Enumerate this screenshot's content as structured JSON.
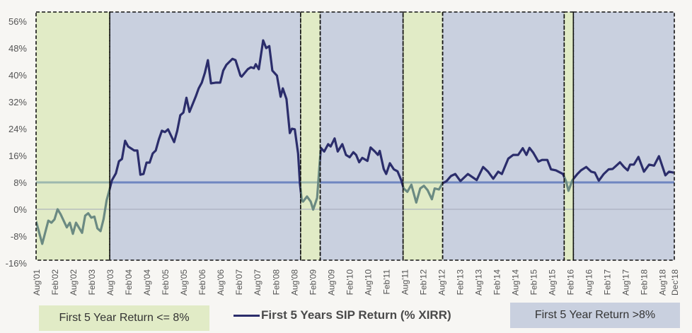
{
  "chart_data": {
    "type": "line",
    "title": "",
    "xlabel": "",
    "ylabel": "",
    "ylim": [
      -16,
      56
    ],
    "yticks": [
      56,
      48,
      40,
      32,
      24,
      16,
      8,
      0,
      -8,
      -16
    ],
    "ytick_labels": [
      "56%",
      "48%",
      "40%",
      "32%",
      "24%",
      "16%",
      "8%",
      "0%",
      "-8%",
      "-16%"
    ],
    "x_unit_months_start": "Aug'01",
    "xlim_months": [
      0,
      208
    ],
    "xtick_labels": [
      "Aug'01",
      "Feb'02",
      "Aug'02",
      "Feb'03",
      "Aug'03",
      "Feb'04",
      "Aug'04",
      "Feb'05",
      "Aug'05",
      "Feb'06",
      "Aug'06",
      "Feb'07",
      "Aug'07",
      "Feb'08",
      "Aug'08",
      "Feb'09",
      "Aug'09",
      "Feb'10",
      "Aug'10",
      "Feb'11",
      "Aug'11",
      "Feb'12",
      "Aug'12",
      "Feb'13",
      "Aug'13",
      "Feb'14",
      "Aug'14",
      "Feb'15",
      "Aug'15",
      "Feb'16",
      "Aug'16",
      "Feb'17",
      "Aug'17",
      "Feb'18",
      "Aug'18",
      "Dec'18"
    ],
    "xtick_months": [
      0,
      6,
      12,
      18,
      24,
      30,
      36,
      42,
      48,
      54,
      60,
      66,
      72,
      78,
      84,
      90,
      96,
      102,
      108,
      114,
      120,
      126,
      132,
      138,
      144,
      150,
      156,
      162,
      168,
      174,
      180,
      186,
      192,
      198,
      204,
      208
    ],
    "threshold": 8,
    "series": [
      {
        "name": "First 5 Years SIP Return (% XIRR)",
        "color_above": "#2b2d6b",
        "color_below": "#6b8a82",
        "points": [
          [
            0,
            -3.6
          ],
          [
            2,
            -10.3
          ],
          [
            4,
            -3.4
          ],
          [
            5,
            -4
          ],
          [
            6,
            -3
          ],
          [
            7,
            0
          ],
          [
            8,
            -1.5
          ],
          [
            10,
            -5.4
          ],
          [
            11,
            -4
          ],
          [
            12,
            -7.3
          ],
          [
            13,
            -4
          ],
          [
            15,
            -7
          ],
          [
            16,
            -1.9
          ],
          [
            17,
            -1.2
          ],
          [
            18,
            -2.5
          ],
          [
            19,
            -2.2
          ],
          [
            20,
            -5.7
          ],
          [
            21,
            -6.5
          ],
          [
            22,
            -2.9
          ],
          [
            23,
            2.7
          ],
          [
            24,
            6.1
          ],
          [
            24.7,
            8.6
          ],
          [
            26,
            10.7
          ],
          [
            27,
            14.3
          ],
          [
            28,
            15
          ],
          [
            29,
            20.4
          ],
          [
            30,
            18.7
          ],
          [
            31,
            18.1
          ],
          [
            32,
            17.5
          ],
          [
            33,
            17.5
          ],
          [
            34,
            10.3
          ],
          [
            35,
            10.5
          ],
          [
            36,
            13.9
          ],
          [
            37,
            13.9
          ],
          [
            38,
            16.6
          ],
          [
            39,
            17.5
          ],
          [
            40,
            20.8
          ],
          [
            41,
            23.4
          ],
          [
            42,
            23
          ],
          [
            43,
            23.8
          ],
          [
            45,
            20
          ],
          [
            46,
            23.4
          ],
          [
            47,
            28
          ],
          [
            48,
            28.8
          ],
          [
            49,
            33.2
          ],
          [
            50,
            29
          ],
          [
            52,
            33.5
          ],
          [
            53,
            36
          ],
          [
            54,
            37.7
          ],
          [
            55,
            40.6
          ],
          [
            56,
            44.4
          ],
          [
            57,
            37.5
          ],
          [
            58.5,
            37.7
          ],
          [
            60,
            37.7
          ],
          [
            61,
            41.3
          ],
          [
            62,
            43
          ],
          [
            64,
            44.8
          ],
          [
            65,
            44.4
          ],
          [
            66.6,
            39.8
          ],
          [
            67,
            39.5
          ],
          [
            69,
            41.7
          ],
          [
            70,
            42.3
          ],
          [
            71,
            42
          ],
          [
            71.6,
            43.2
          ],
          [
            72.6,
            41.7
          ],
          [
            74,
            50.3
          ],
          [
            75,
            48
          ],
          [
            76,
            48.6
          ],
          [
            77,
            41.3
          ],
          [
            78.5,
            39.8
          ],
          [
            79.7,
            33.5
          ],
          [
            80.4,
            36
          ],
          [
            81.6,
            32.8
          ],
          [
            82.7,
            22.7
          ],
          [
            83.4,
            24
          ],
          [
            84.3,
            23.8
          ],
          [
            85.4,
            16.6
          ],
          [
            86,
            7.6
          ],
          [
            86.6,
            2.7
          ],
          [
            87,
            2.3
          ],
          [
            88.3,
            3.8
          ],
          [
            89.5,
            2.3
          ],
          [
            90.3,
            -0.1
          ],
          [
            91.6,
            3.4
          ],
          [
            92.8,
            18.3
          ],
          [
            93.9,
            17.2
          ],
          [
            95.2,
            19.4
          ],
          [
            96,
            18.7
          ],
          [
            97.3,
            21.1
          ],
          [
            98.3,
            17.2
          ],
          [
            99.8,
            19.4
          ],
          [
            101,
            16.2
          ],
          [
            102.2,
            15.5
          ],
          [
            103.4,
            17
          ],
          [
            104.3,
            16.2
          ],
          [
            105.3,
            14
          ],
          [
            106.3,
            15.3
          ],
          [
            108,
            14.4
          ],
          [
            109,
            18.4
          ],
          [
            110.4,
            17.2
          ],
          [
            111.4,
            16.2
          ],
          [
            112,
            17.4
          ],
          [
            113.3,
            12
          ],
          [
            114.1,
            10.5
          ],
          [
            115.3,
            13.7
          ],
          [
            116.6,
            11.9
          ],
          [
            117.8,
            11.3
          ],
          [
            119,
            8.7
          ],
          [
            119.8,
            6.2
          ],
          [
            121,
            5.2
          ],
          [
            122.3,
            7.3
          ],
          [
            123.9,
            2
          ],
          [
            125.2,
            6.2
          ],
          [
            126.4,
            7
          ],
          [
            127.6,
            5.7
          ],
          [
            129,
            3
          ],
          [
            129.9,
            6.2
          ],
          [
            131.3,
            5.9
          ],
          [
            132.4,
            7.7
          ],
          [
            133.8,
            8.4
          ],
          [
            135.2,
            9.9
          ],
          [
            136.6,
            10.5
          ],
          [
            138.3,
            8.4
          ],
          [
            140.7,
            10.5
          ],
          [
            143.6,
            8.7
          ],
          [
            145.7,
            12.6
          ],
          [
            147.3,
            11.2
          ],
          [
            149,
            9.1
          ],
          [
            150.6,
            11.2
          ],
          [
            151.8,
            10.5
          ],
          [
            153.9,
            15.1
          ],
          [
            155.5,
            16.2
          ],
          [
            157.1,
            16.2
          ],
          [
            158.6,
            18.2
          ],
          [
            159.8,
            16.2
          ],
          [
            160.8,
            18.3
          ],
          [
            162,
            16.9
          ],
          [
            163.7,
            14.2
          ],
          [
            164.9,
            14.7
          ],
          [
            166.6,
            14.7
          ],
          [
            167.8,
            11.9
          ],
          [
            169.4,
            11.6
          ],
          [
            171.7,
            10.5
          ],
          [
            172.7,
            8.4
          ],
          [
            173.5,
            5.5
          ],
          [
            174.8,
            8.7
          ],
          [
            176.4,
            10.5
          ],
          [
            177.6,
            11.6
          ],
          [
            179.3,
            12.6
          ],
          [
            180.9,
            11.2
          ],
          [
            182.1,
            10.9
          ],
          [
            183.4,
            8.5
          ],
          [
            185,
            10.5
          ],
          [
            186.6,
            11.9
          ],
          [
            187.9,
            12
          ],
          [
            189.1,
            13
          ],
          [
            190.3,
            14
          ],
          [
            191.6,
            12.6
          ],
          [
            192.8,
            11.6
          ],
          [
            193.6,
            13.3
          ],
          [
            194.8,
            13.3
          ],
          [
            196.3,
            15.6
          ],
          [
            198.1,
            11.2
          ],
          [
            199.8,
            13.3
          ],
          [
            201.4,
            13
          ],
          [
            203,
            15.8
          ],
          [
            205.1,
            10.1
          ],
          [
            206.3,
            11.2
          ],
          [
            207.8,
            10.9
          ]
        ]
      }
    ],
    "regions": [
      {
        "start": 0,
        "end": 24,
        "kind": "low"
      },
      {
        "start": 24,
        "end": 86.2,
        "kind": "high"
      },
      {
        "start": 86.2,
        "end": 92.6,
        "kind": "low"
      },
      {
        "start": 92.6,
        "end": 119.6,
        "kind": "high"
      },
      {
        "start": 119.6,
        "end": 132.5,
        "kind": "low"
      },
      {
        "start": 132.5,
        "end": 172.1,
        "kind": "high"
      },
      {
        "start": 172.1,
        "end": 175.1,
        "kind": "low"
      },
      {
        "start": 175.1,
        "end": 208,
        "kind": "high"
      }
    ],
    "region_colors": {
      "low": "#e1ebc6",
      "high": "#c9d0df"
    },
    "threshold_colors": {
      "low": "#9db8ae",
      "high": "#6f86c0"
    },
    "legend": {
      "low_label": "First 5 Year Return <= 8%",
      "line_label": "First 5 Years SIP Return (% XIRR)",
      "high_label": "First 5 Year Return >8%",
      "placement": "bottom"
    }
  }
}
